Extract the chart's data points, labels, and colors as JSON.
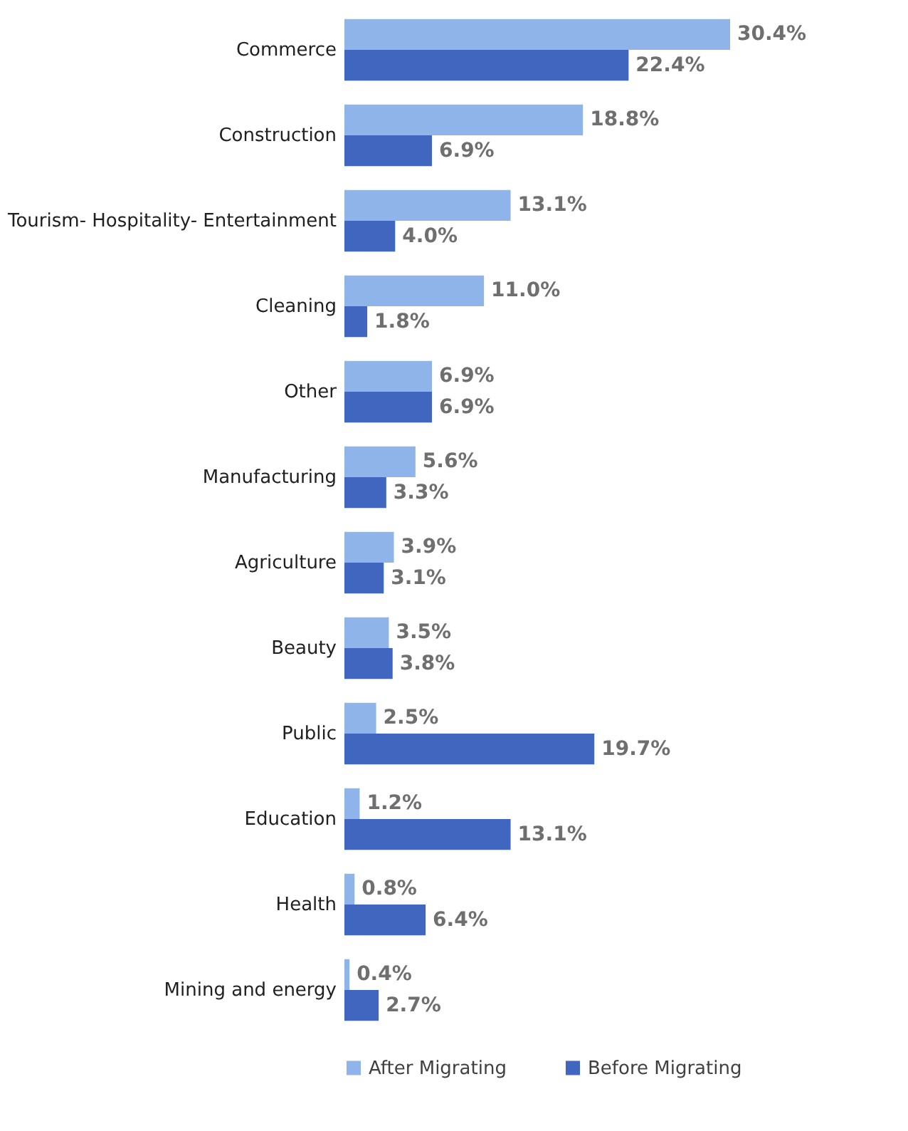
{
  "chart_data": {
    "type": "bar",
    "orientation": "horizontal",
    "legend": "bottom",
    "grid": false,
    "categories": [
      "Commerce",
      "Construction",
      "Tourism- Hospitality- Entertainment",
      "Cleaning",
      "Other",
      "Manufacturing",
      "Agriculture",
      "Beauty",
      "Public",
      "Education",
      "Health",
      "Mining and energy"
    ],
    "series": [
      {
        "name": "After Migrating",
        "color": "#8eb4ea",
        "values": [
          30.4,
          18.8,
          13.1,
          11.0,
          6.9,
          5.6,
          3.9,
          3.5,
          2.5,
          1.2,
          0.8,
          0.4
        ],
        "value_labels": [
          "30.4%",
          "18.8%",
          "13.1%",
          "11.0%",
          "6.9%",
          "5.6%",
          "3.9%",
          "3.5%",
          "2.5%",
          "1.2%",
          "0.8%",
          "0.4%"
        ]
      },
      {
        "name": "Before Migrating",
        "color": "#4066bf",
        "values": [
          22.4,
          6.9,
          4.0,
          1.8,
          6.9,
          3.3,
          3.1,
          3.8,
          19.7,
          13.1,
          6.4,
          2.7
        ],
        "value_labels": [
          "22.4%",
          "6.9%",
          "4.0%",
          "1.8%",
          "6.9%",
          "3.3%",
          "3.1%",
          "3.8%",
          "19.7%",
          "13.1%",
          "6.4%",
          "2.7%"
        ]
      }
    ]
  }
}
